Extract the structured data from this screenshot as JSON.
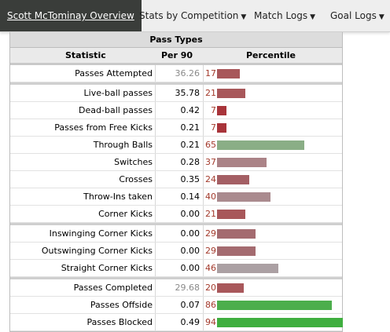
{
  "nav": {
    "overview": "Scott McTominay Overview",
    "competition": "Stats by Competition",
    "match_logs": "Match Logs",
    "goal_logs": "Goal Logs",
    "caret": "▼"
  },
  "table": {
    "title": "Pass Types",
    "headers": {
      "statistic": "Statistic",
      "per90": "Per 90",
      "percentile": "Percentile"
    },
    "rows": [
      {
        "stat": "Passes Attempted",
        "per90": "36.26",
        "per90_grey": true,
        "pct": "17",
        "pct_value": 17,
        "color": "#a8575a",
        "group_start": false
      },
      {
        "stat": "Live-ball passes",
        "per90": "35.78",
        "per90_grey": false,
        "pct": "21",
        "pct_value": 21,
        "color": "#a8575a",
        "group_start": true
      },
      {
        "stat": "Dead-ball passes",
        "per90": "0.42",
        "per90_grey": false,
        "pct": "7",
        "pct_value": 7,
        "color": "#a8343a",
        "group_start": false
      },
      {
        "stat": "Passes from Free Kicks",
        "per90": "0.21",
        "per90_grey": false,
        "pct": "7",
        "pct_value": 7,
        "color": "#a8343a",
        "group_start": false
      },
      {
        "stat": "Through Balls",
        "per90": "0.21",
        "per90_grey": false,
        "pct": "65",
        "pct_value": 65,
        "color": "#8aae86",
        "group_start": false
      },
      {
        "stat": "Switches",
        "per90": "0.28",
        "per90_grey": false,
        "pct": "37",
        "pct_value": 37,
        "color": "#ab8387",
        "group_start": false
      },
      {
        "stat": "Crosses",
        "per90": "0.35",
        "per90_grey": false,
        "pct": "24",
        "pct_value": 24,
        "color": "#a45f64",
        "group_start": false
      },
      {
        "stat": "Throw-Ins taken",
        "per90": "0.14",
        "per90_grey": false,
        "pct": "40",
        "pct_value": 40,
        "color": "#aa8a8e",
        "group_start": false
      },
      {
        "stat": "Corner Kicks",
        "per90": "0.00",
        "per90_grey": false,
        "pct": "21",
        "pct_value": 21,
        "color": "#a8575a",
        "group_start": false
      },
      {
        "stat": "Inswinging Corner Kicks",
        "per90": "0.00",
        "per90_grey": false,
        "pct": "29",
        "pct_value": 29,
        "color": "#a46b70",
        "group_start": true
      },
      {
        "stat": "Outswinging Corner Kicks",
        "per90": "0.00",
        "per90_grey": false,
        "pct": "29",
        "pct_value": 29,
        "color": "#a46b70",
        "group_start": false
      },
      {
        "stat": "Straight Corner Kicks",
        "per90": "0.00",
        "per90_grey": false,
        "pct": "46",
        "pct_value": 46,
        "color": "#aba0a3",
        "group_start": false
      },
      {
        "stat": "Passes Completed",
        "per90": "29.68",
        "per90_grey": true,
        "pct": "20",
        "pct_value": 20,
        "color": "#a8575a",
        "group_start": true
      },
      {
        "stat": "Passes Offside",
        "per90": "0.07",
        "per90_grey": false,
        "pct": "86",
        "pct_value": 86,
        "color": "#4cae4c",
        "group_start": false
      },
      {
        "stat": "Passes Blocked",
        "per90": "0.49",
        "per90_grey": false,
        "pct": "94",
        "pct_value": 94,
        "color": "#3fae3f",
        "group_start": false
      }
    ]
  }
}
